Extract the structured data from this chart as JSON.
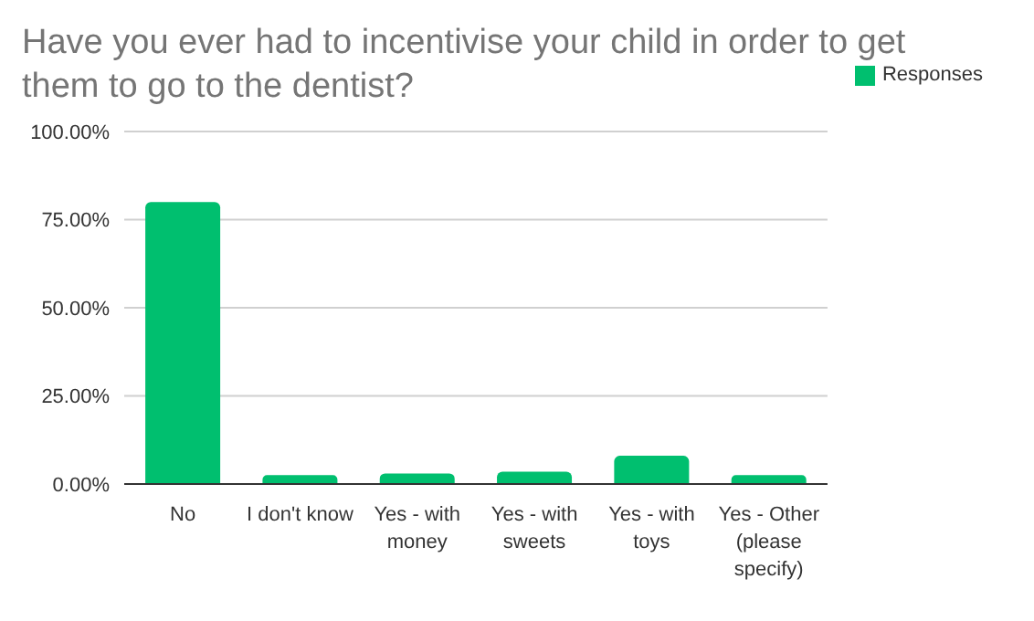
{
  "chart_data": {
    "type": "bar",
    "title": "Have you ever had to incentivise your child in order to get them to go to the dentist?",
    "categories": [
      "No",
      "I don't know",
      "Yes - with money",
      "Yes - with sweets",
      "Yes - with toys",
      "Yes - Other (please specify)"
    ],
    "series": [
      {
        "name": "Responses",
        "color": "#00bf6f",
        "values": [
          80,
          2.5,
          3,
          3.5,
          8,
          2.5
        ]
      }
    ],
    "ylim": [
      0,
      100
    ],
    "yticks": [
      {
        "value": 0,
        "label": "0.00%"
      },
      {
        "value": 25,
        "label": "25.00%"
      },
      {
        "value": 50,
        "label": "50.00%"
      },
      {
        "value": 75,
        "label": "75.00%"
      },
      {
        "value": 100,
        "label": "100.00%"
      }
    ],
    "grid": "y",
    "legend": "top right"
  }
}
